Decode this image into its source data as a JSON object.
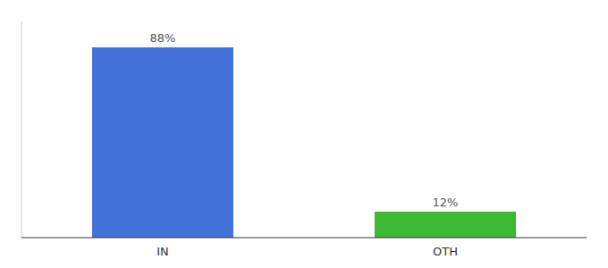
{
  "chart_data": {
    "type": "bar",
    "categories": [
      "IN",
      "OTH"
    ],
    "values": [
      88,
      12
    ],
    "value_labels": [
      "88%",
      "12%"
    ],
    "colors": [
      "#4472db",
      "#3db832"
    ],
    "ylim": [
      0,
      100
    ],
    "data_labels": true,
    "tick_labels": "x"
  }
}
